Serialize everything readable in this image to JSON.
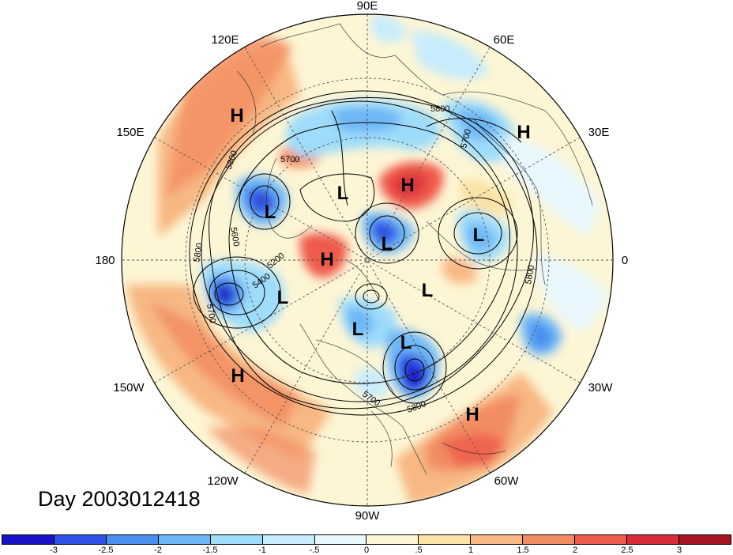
{
  "map": {
    "projection": "polar-stereographic-north",
    "longitude_labels": {
      "top": "90E",
      "top_right": "60E",
      "upper_right": "30E",
      "right": "0",
      "lower_right": "30W",
      "bottom_right": "60W",
      "bottom": "90W",
      "bottom_left": "120W",
      "lower_left": "150W",
      "left": "180",
      "upper_left": "150E",
      "top_left": "120E"
    },
    "pressure_centers": [
      {
        "id": "h-west-pacific",
        "label": "H"
      },
      {
        "id": "l-east-siberia",
        "label": "L"
      },
      {
        "id": "l-siberia",
        "label": "L"
      },
      {
        "id": "h-arctic",
        "label": "H"
      },
      {
        "id": "h-beaufort",
        "label": "H"
      },
      {
        "id": "l-bering",
        "label": "L"
      },
      {
        "id": "l-kara",
        "label": "L"
      },
      {
        "id": "h-europe",
        "label": "H"
      },
      {
        "id": "l-scandinavia",
        "label": "L"
      },
      {
        "id": "l-greenland",
        "label": "L"
      },
      {
        "id": "l-hudson",
        "label": "L"
      },
      {
        "id": "l-labrador",
        "label": "L"
      },
      {
        "id": "h-east-pacific",
        "label": "H"
      },
      {
        "id": "h-atlantic",
        "label": "H"
      }
    ],
    "contour_labels": [
      "5800",
      "5700",
      "5600",
      "5200",
      "5400",
      "5700",
      "5800",
      "5800",
      "5700",
      "5800",
      "5800",
      "5700"
    ],
    "colors": {
      "neg3": "#1a12c6",
      "neg25": "#2f52e6",
      "neg2": "#4a8ff0",
      "neg15": "#6eb7f6",
      "neg1": "#9edcfa",
      "neg05": "#d2f1fd",
      "pos0": "#fdf6d5",
      "pos05": "#fae3a6",
      "pos1": "#f7b883",
      "pos15": "#f28c62",
      "pos2": "#ee5a4b",
      "pos25": "#d92c38",
      "pos3": "#a61521"
    }
  },
  "title": "Day 2003012418",
  "colorbar": {
    "colors": [
      "#1a12c6",
      "#2f52e6",
      "#4a8ff0",
      "#6eb7f6",
      "#9edcfa",
      "#c7ecfb",
      "#e8f7fd",
      "#fdf6d5",
      "#fae3a6",
      "#f7b883",
      "#f28c62",
      "#ee5a4b",
      "#d92c38",
      "#a61521"
    ],
    "labels": [
      "-3",
      "-2.5",
      "-2",
      "-1.5",
      "-1",
      "-.5",
      "0",
      ".5",
      "1",
      "1.5",
      "2",
      "2.5",
      "3"
    ]
  }
}
